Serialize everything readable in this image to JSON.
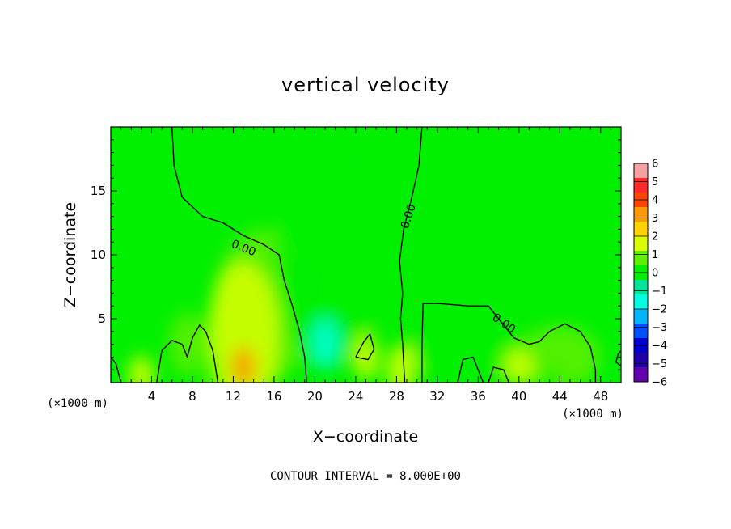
{
  "chart_data": {
    "type": "heatmap",
    "title": "vertical velocity",
    "xlabel": "X−coordinate",
    "ylabel": "Z−coordinate",
    "x_unit_left": "(×1000 m)",
    "x_unit_right": "(×1000 m)",
    "footer": "CONTOUR INTERVAL = 8.000E+00",
    "contour_label": "0.00",
    "xlim": [
      0,
      50
    ],
    "ylim": [
      0,
      20
    ],
    "x_ticks": [
      4,
      8,
      12,
      16,
      20,
      24,
      28,
      32,
      36,
      40,
      44,
      48
    ],
    "y_ticks": [
      5,
      10,
      15
    ],
    "colorbar": {
      "labels": [
        "6",
        "5",
        "4",
        "3",
        "2",
        "1",
        "0",
        "−1",
        "−2",
        "−3",
        "−4",
        "−5",
        "−6"
      ],
      "colors": [
        "#f4a0a0",
        "#ff2a2a",
        "#ff4400",
        "#ff9900",
        "#ffd200",
        "#d8ff00",
        "#5ef000",
        "#00f000",
        "#00e49a",
        "#00ffe0",
        "#00b4ff",
        "#0050ff",
        "#0000d0",
        "#2000a8",
        "#6000b0"
      ]
    },
    "background_color": "#00f000",
    "features": [
      {
        "x": 13,
        "z": 1.2,
        "rx": 1.2,
        "rz": 1.6,
        "value": 3.0
      },
      {
        "x": 13,
        "z": 3.5,
        "rx": 3.5,
        "rz": 6.0,
        "value": 0.9
      },
      {
        "x": 15,
        "z": 6.0,
        "rx": 5.0,
        "rz": 6.0,
        "value": 0.4
      },
      {
        "x": 3,
        "z": 0.6,
        "rx": 1.3,
        "rz": 1.5,
        "value": 1.0
      },
      {
        "x": 7.5,
        "z": 3.0,
        "rx": 1.8,
        "rz": 2.5,
        "value": 0.5
      },
      {
        "x": 21,
        "z": 3.0,
        "rx": 1.4,
        "rz": 2.0,
        "value": -3.0
      },
      {
        "x": 21,
        "z": 6.0,
        "rx": 4.0,
        "rz": 5.0,
        "value": -1.2
      },
      {
        "x": 22,
        "z": 10.0,
        "rx": 6.0,
        "rz": 7.0,
        "value": -0.5
      },
      {
        "x": 25,
        "z": 2.0,
        "rx": 1.3,
        "rz": 1.8,
        "value": 0.6
      },
      {
        "x": 28.5,
        "z": 1.0,
        "rx": 1.5,
        "rz": 2.0,
        "value": 1.2
      },
      {
        "x": 35,
        "z": 3.0,
        "rx": 6.0,
        "rz": 3.0,
        "value": -0.5
      },
      {
        "x": 44,
        "z": 2.0,
        "rx": 4.0,
        "rz": 2.5,
        "value": -0.4
      },
      {
        "x": 43,
        "z": 0.4,
        "rx": 1.0,
        "rz": 0.8,
        "value": -1.0
      },
      {
        "x": 8,
        "z": 0.4,
        "rx": 1.0,
        "rz": 0.8,
        "value": -1.0
      },
      {
        "x": 40,
        "z": 1.2,
        "rx": 1.5,
        "rz": 1.5,
        "value": 0.6
      }
    ],
    "contours": [
      [
        [
          6,
          20
        ],
        [
          6.2,
          17
        ],
        [
          7,
          14.5
        ],
        [
          9,
          13
        ],
        [
          11,
          12.5
        ],
        [
          13,
          11.5
        ],
        [
          15,
          10.8
        ],
        [
          16.5,
          10
        ],
        [
          17,
          8
        ],
        [
          17.8,
          6
        ],
        [
          18.5,
          4
        ],
        [
          19,
          2
        ],
        [
          19.2,
          0
        ]
      ],
      [
        [
          30.5,
          20
        ],
        [
          30.2,
          17
        ],
        [
          29.5,
          14.5
        ],
        [
          28.7,
          12
        ],
        [
          28.3,
          9.5
        ],
        [
          28.6,
          7
        ],
        [
          28.4,
          5
        ],
        [
          28.6,
          3
        ],
        [
          28.8,
          0
        ]
      ],
      [
        [
          30.5,
          0
        ],
        [
          30.5,
          3
        ],
        [
          30.6,
          6.2
        ],
        [
          32,
          6.2
        ],
        [
          35,
          6.0
        ],
        [
          37,
          6.0
        ],
        [
          38,
          5.0
        ],
        [
          39.5,
          3.5
        ],
        [
          41,
          3.0
        ],
        [
          42,
          3.2
        ],
        [
          43,
          4.0
        ],
        [
          44.5,
          4.6
        ],
        [
          46,
          4.0
        ],
        [
          47,
          2.8
        ],
        [
          47.5,
          1.0
        ],
        [
          47.5,
          0
        ]
      ],
      [
        [
          0,
          2.0
        ],
        [
          0.5,
          1.5
        ],
        [
          1,
          0
        ]
      ],
      [
        [
          4.5,
          0
        ],
        [
          5,
          2.5
        ],
        [
          6,
          3.3
        ],
        [
          7,
          3.0
        ],
        [
          7.5,
          2
        ],
        [
          8,
          3.5
        ],
        [
          8.7,
          4.5
        ],
        [
          9.3,
          4.0
        ],
        [
          10,
          2.5
        ],
        [
          10.5,
          0
        ]
      ],
      [
        [
          24,
          2.0
        ],
        [
          24.8,
          3.2
        ],
        [
          25.4,
          3.8
        ],
        [
          25.8,
          2.6
        ],
        [
          25.2,
          1.8
        ],
        [
          24,
          2.0
        ]
      ],
      [
        [
          34,
          0
        ],
        [
          34.5,
          1.8
        ],
        [
          35.5,
          2.0
        ],
        [
          36,
          1.0
        ],
        [
          36.5,
          0
        ]
      ],
      [
        [
          37,
          0
        ],
        [
          37.5,
          1.2
        ],
        [
          38.5,
          1.0
        ],
        [
          39,
          0
        ]
      ],
      [
        [
          50,
          1.3
        ],
        [
          49.5,
          1.6
        ],
        [
          49.7,
          2.2
        ],
        [
          50,
          2.5
        ]
      ]
    ],
    "contour_label_positions": [
      {
        "x": 13,
        "z": 10.5,
        "angle": 22
      },
      {
        "x": 29.2,
        "z": 13,
        "angle": -72
      },
      {
        "x": 38.5,
        "z": 4.6,
        "angle": 35
      }
    ]
  }
}
